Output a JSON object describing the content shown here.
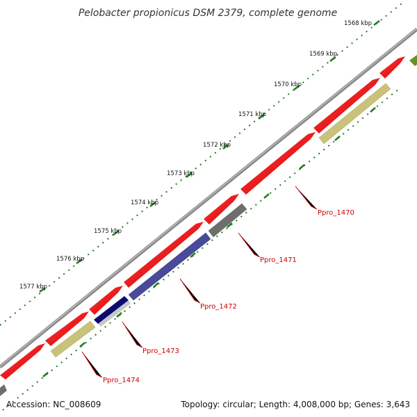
{
  "title": "Pelobacter propionicus DSM 2379, complete genome",
  "footer": {
    "accession": "Accession: NC_008609",
    "summary": "Topology: circular; Length: 4,008,000 bp; Genes: 3,643"
  },
  "ruler": {
    "tick_labels": [
      "1568 kbp",
      "1569 kbp",
      "1570 kbp",
      "1571 kbp",
      "1572 kbp",
      "1573 kbp",
      "1574 kbp",
      "1575 kbp",
      "1576 kbp",
      "1577 kbp"
    ]
  },
  "gene_labels": [
    "Ppro_1470",
    "Ppro_1471",
    "Ppro_1472",
    "Ppro_1473",
    "Ppro_1474"
  ],
  "colors": {
    "backbone": "#8a8a8a",
    "cds_forward": "#ff0000",
    "gene_labels": "#cc0000",
    "ticks": "#1f7a1f",
    "feature_khaki": "#c8c27a",
    "feature_gray": "#6e6e6e",
    "feature_slate": "#4a4a9a",
    "feature_navy": "#0a0a70",
    "feature_green": "#6a8f2a"
  }
}
